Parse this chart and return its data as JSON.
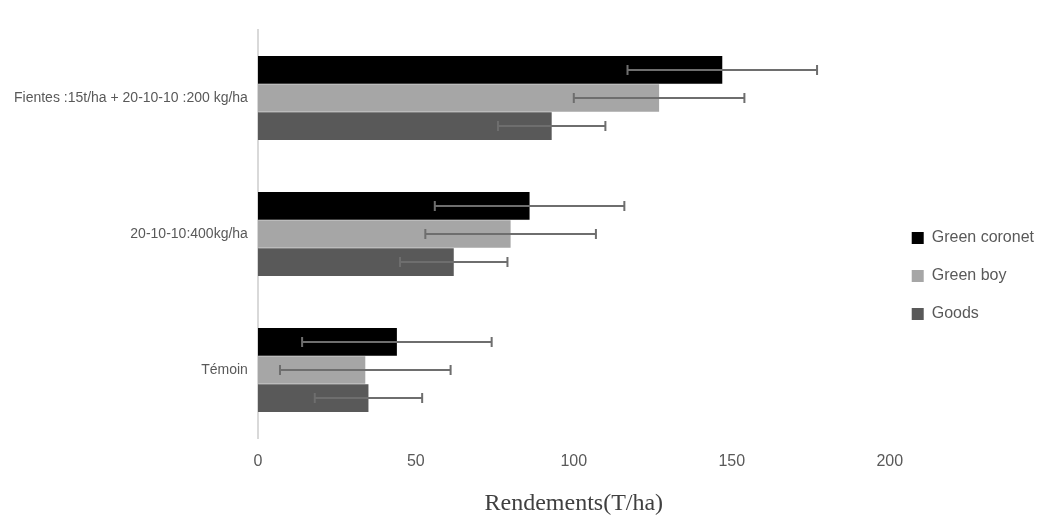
{
  "chart_data": {
    "type": "bar",
    "orientation": "horizontal",
    "xlabel": "Rendements(T/ha)",
    "categories": [
      "Fientes :15t/ha + 20-10-10 :200 kg/ha",
      "20-10-10:400kg/ha",
      "Témoin"
    ],
    "series": [
      {
        "name": "Green coronet",
        "color": "#000000",
        "values": [
          147,
          86,
          44
        ],
        "errors": [
          30,
          30,
          30
        ]
      },
      {
        "name": "Green boy",
        "color": "#a6a6a6",
        "values": [
          127,
          80,
          34
        ],
        "errors": [
          27,
          27,
          27
        ]
      },
      {
        "name": "Goods",
        "color": "#595959",
        "values": [
          93,
          62,
          35
        ],
        "errors": [
          17,
          17,
          17
        ]
      }
    ],
    "xlim": [
      0,
      200
    ],
    "xticks": [
      0,
      50,
      100,
      150,
      200
    ],
    "grid": false,
    "legend": "right"
  }
}
